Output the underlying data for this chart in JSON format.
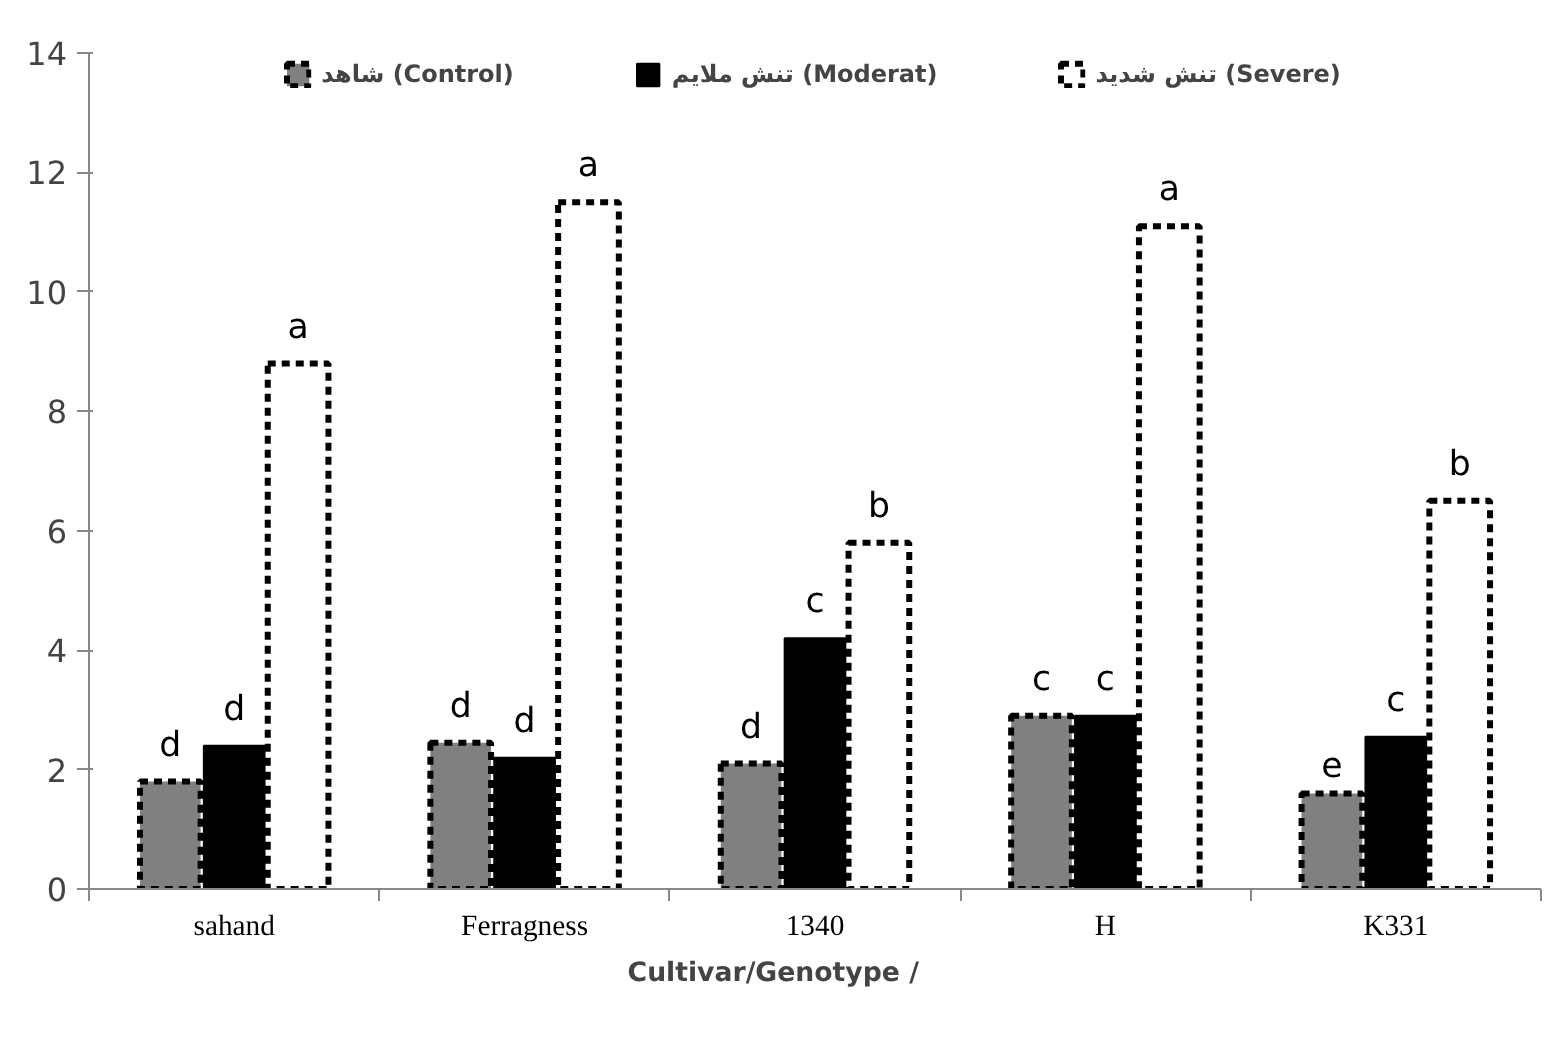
{
  "chart_data": {
    "type": "bar",
    "xlabel": "Cultivar/Genotype          /",
    "categories": [
      "sahand",
      "Ferragness",
      "1340",
      "H",
      "K331"
    ],
    "series": [
      {
        "name": "شاهد (Control)",
        "color": "#808080",
        "line_style": "dashed",
        "values": [
          1.8,
          2.45,
          2.1,
          2.9,
          1.6
        ]
      },
      {
        "name": "تنش ملایم (Moderat)",
        "color": "#000000",
        "line_style": "solid",
        "values": [
          2.4,
          2.2,
          4.2,
          2.9,
          2.55
        ]
      },
      {
        "name": "تنش شدید (Severe)",
        "color": "#ffffff",
        "line_style": "dashed",
        "values": [
          8.8,
          11.5,
          5.8,
          11.1,
          6.5
        ]
      }
    ],
    "ylim": [
      0,
      14
    ],
    "yticks": [
      0,
      2,
      4,
      6,
      8,
      10,
      12,
      14
    ],
    "grid": false,
    "legend": "top",
    "annotations": [
      "d",
      "d",
      "a",
      "d",
      "d",
      "a",
      "d",
      "c",
      "b",
      "c",
      "c",
      "a",
      "e",
      "c",
      "b"
    ]
  }
}
